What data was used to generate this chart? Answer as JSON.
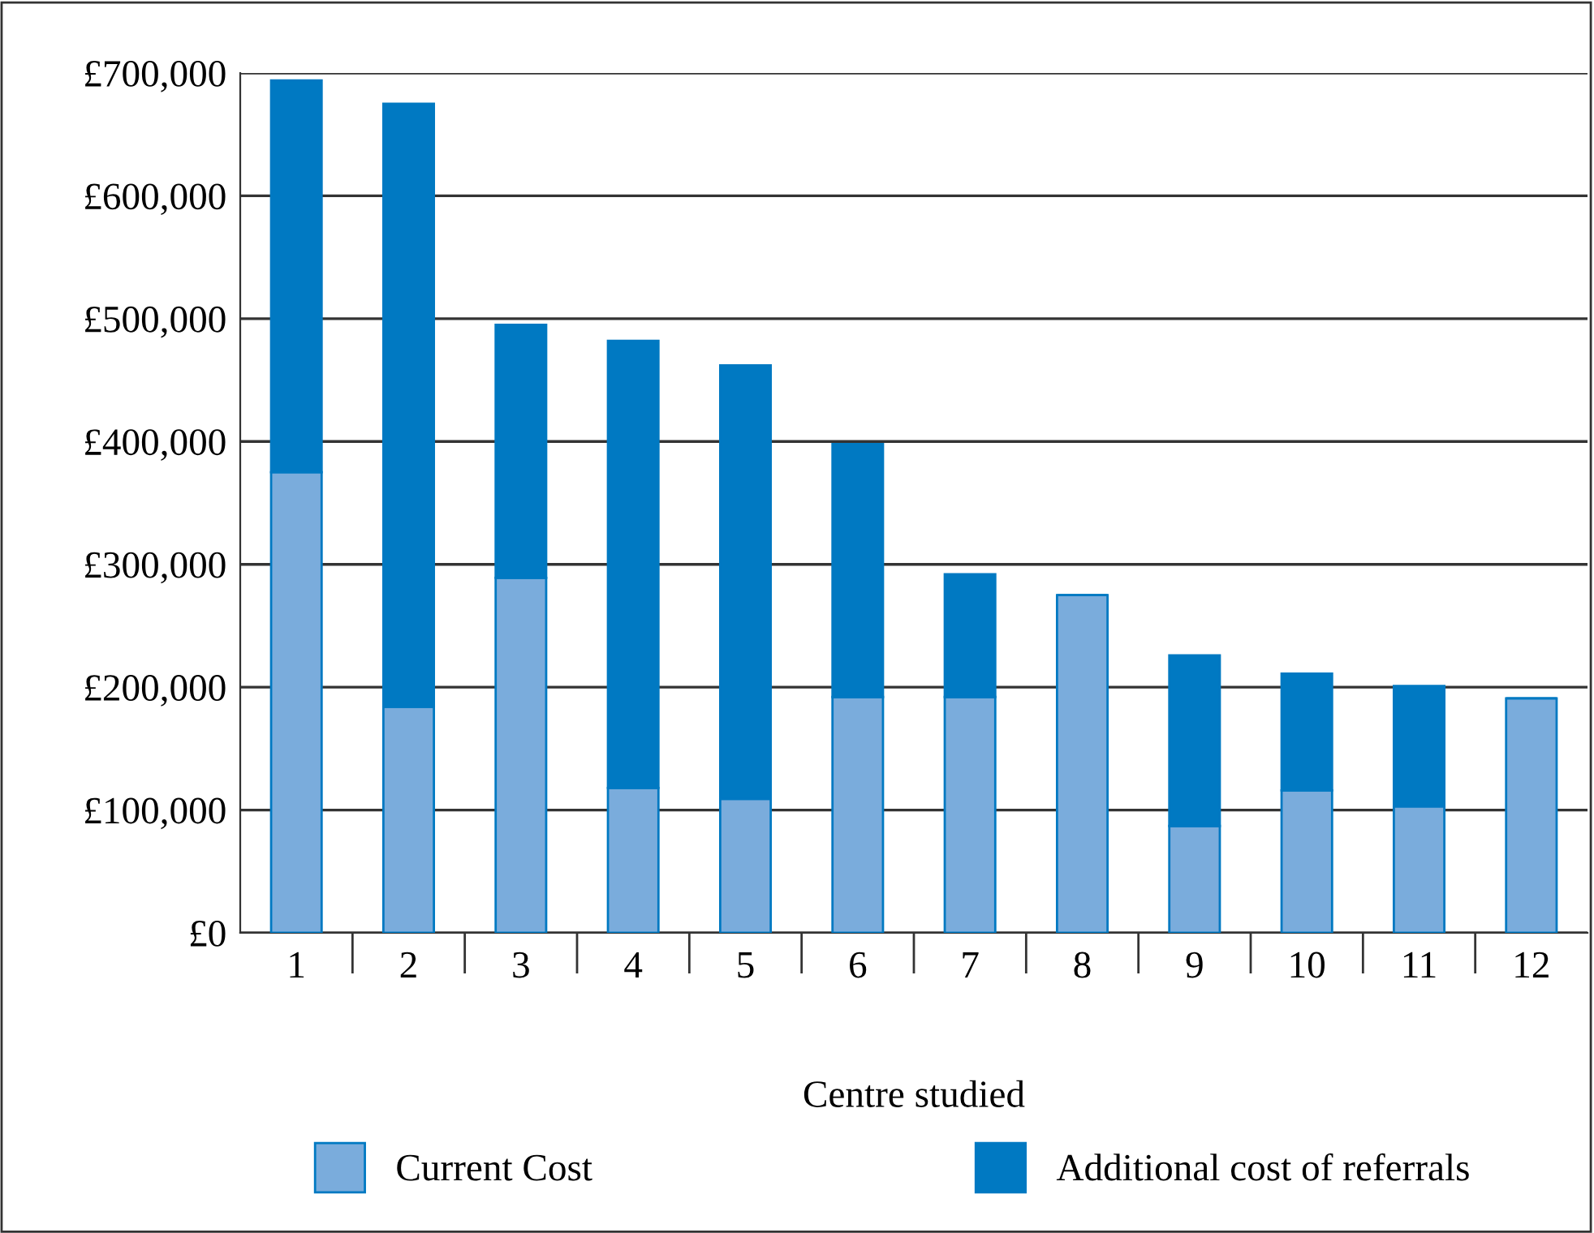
{
  "chart_data": {
    "type": "bar",
    "stacked": true,
    "xlabel": "Centre studied",
    "categories": [
      "1",
      "2",
      "3",
      "4",
      "5",
      "6",
      "7",
      "8",
      "9",
      "10",
      "11",
      "12"
    ],
    "series": [
      {
        "name": "Current Cost",
        "color": "#7aacdc",
        "values": [
          375000,
          184000,
          289000,
          118000,
          109000,
          192000,
          192000,
          275000,
          87000,
          116000,
          103000,
          191000
        ]
      },
      {
        "name": "Additional cost of referrals",
        "color": "#0079c2",
        "values": [
          319000,
          491000,
          206000,
          364000,
          353000,
          206000,
          100000,
          0,
          139000,
          95000,
          98000,
          0
        ]
      }
    ],
    "ylim": [
      0,
      700000
    ],
    "yticks": [
      {
        "value": 0,
        "label": "£0"
      },
      {
        "value": 100000,
        "label": "£100,000"
      },
      {
        "value": 200000,
        "label": "£200,000"
      },
      {
        "value": 300000,
        "label": "£300,000"
      },
      {
        "value": 400000,
        "label": "£400,000"
      },
      {
        "value": 500000,
        "label": "£500,000"
      },
      {
        "value": 600000,
        "label": "£600,000"
      },
      {
        "value": 700000,
        "label": "£700,000"
      }
    ],
    "grid": "y",
    "legend": "bottom"
  }
}
